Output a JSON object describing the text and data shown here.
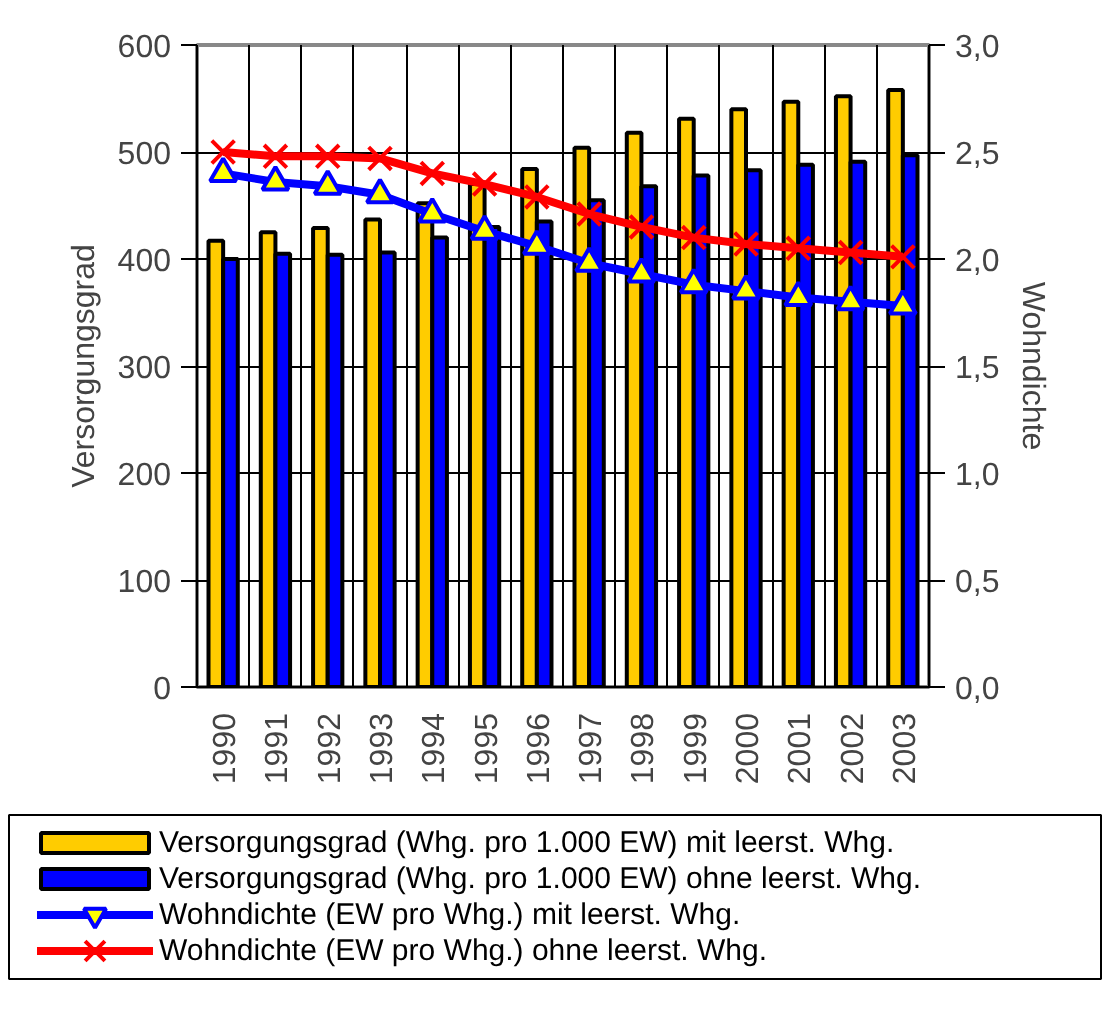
{
  "chart_data": {
    "type": "bar",
    "ylabel": "Versorgungsgrad",
    "y2label": "Wohndichte",
    "categories": [
      "1990",
      "1991",
      "1992",
      "1993",
      "1994",
      "1995",
      "1996",
      "1997",
      "1998",
      "1999",
      "2000",
      "2001",
      "2002",
      "2003"
    ],
    "series": [
      {
        "name": "Versorgungsgrad (Whg. pro 1.000 EW) mit leerst. Whg.",
        "color": "#ffcc00",
        "values": [
          417,
          425,
          429,
          437,
          452,
          470,
          484,
          504,
          518,
          531,
          540,
          547,
          552,
          558
        ]
      },
      {
        "name": "Versorgungsgrad (Whg. pro 1.000 EW) ohne leerst. Whg.",
        "color": "#0000ff",
        "values": [
          400,
          405,
          404,
          406,
          420,
          430,
          435,
          455,
          468,
          478,
          483,
          488,
          491,
          497
        ]
      },
      {
        "name": "Wohndichte (EW pro Whg.) mit leerst. Whg.",
        "type": "line",
        "axis": "y2",
        "marker": "triangle",
        "color": "#0000ff",
        "values": [
          2.4,
          2.36,
          2.34,
          2.3,
          2.21,
          2.13,
          2.06,
          1.98,
          1.93,
          1.88,
          1.85,
          1.82,
          1.8,
          1.78
        ]
      },
      {
        "name": "Wohndichte (EW pro Whg.) ohne leerst. Whg.",
        "type": "line",
        "axis": "y2",
        "marker": "cross",
        "color": "#ff0000",
        "values": [
          2.5,
          2.48,
          2.48,
          2.47,
          2.4,
          2.35,
          2.29,
          2.21,
          2.15,
          2.1,
          2.07,
          2.05,
          2.03,
          2.01
        ]
      }
    ],
    "ylim": [
      0,
      600
    ],
    "yticks": [
      0,
      100,
      200,
      300,
      400,
      500,
      600
    ],
    "y2lim": [
      0,
      3
    ],
    "y2ticks": [
      {
        "value": 0,
        "label": "0,0"
      },
      {
        "value": 0.5,
        "label": "0,5"
      },
      {
        "value": 1,
        "label": "1,0"
      },
      {
        "value": 1.5,
        "label": "1,5"
      },
      {
        "value": 2,
        "label": "2,0"
      },
      {
        "value": 2.5,
        "label": "2,5"
      },
      {
        "value": 3,
        "label": "3,0"
      }
    ],
    "grid": true,
    "legend": "bottom"
  }
}
